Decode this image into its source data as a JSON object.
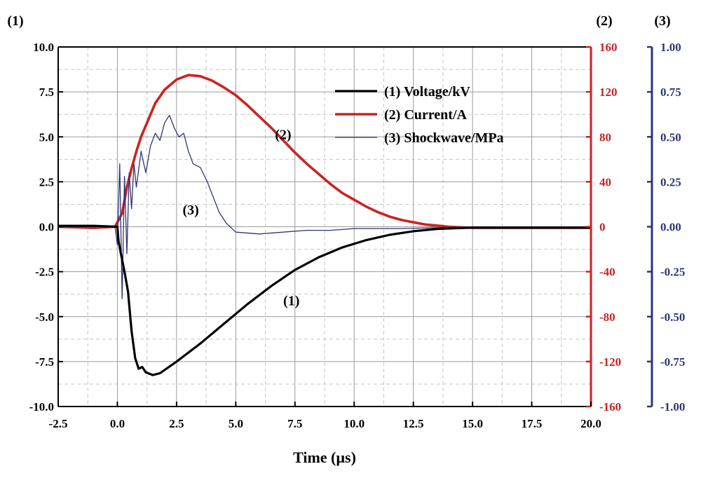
{
  "chart_data": {
    "type": "line",
    "xlabel": "Time (µs)",
    "xlim": [
      -2.5,
      20.0
    ],
    "x_ticks": [
      "-2.5",
      "0.0",
      "2.5",
      "5.0",
      "7.5",
      "10.0",
      "12.5",
      "15.0",
      "17.5",
      "20.0"
    ],
    "axes": [
      {
        "id": "y1",
        "label": "(1)",
        "lim": [
          -10.0,
          10.0
        ],
        "ticks": [
          "10.0",
          "7.5",
          "5.0",
          "2.5",
          "0.0",
          "-2.5",
          "-5.0",
          "-7.5",
          "-10.0"
        ],
        "color": "#000000"
      },
      {
        "id": "y2",
        "label": "(2)",
        "lim": [
          -160,
          160
        ],
        "ticks": [
          "160",
          "120",
          "80",
          "40",
          "0",
          "-40",
          "-80",
          "-120",
          "-160"
        ],
        "color": "#cc2222"
      },
      {
        "id": "y3",
        "label": "(3)",
        "lim": [
          -1.0,
          1.0
        ],
        "ticks": [
          "1.00",
          "0.75",
          "0.50",
          "0.25",
          "0.00",
          "-0.25",
          "-0.50",
          "-0.75",
          "-1.00"
        ],
        "color": "#2e3575"
      }
    ],
    "grid": true,
    "legend_position": "top-right",
    "series": [
      {
        "name": "(1) Voltage/kV",
        "axis": "y1",
        "color": "#000000",
        "annotation": "(1)",
        "points": [
          [
            -2.5,
            0.05
          ],
          [
            -1.0,
            0.05
          ],
          [
            0.0,
            0.0
          ],
          [
            0.05,
            -0.8
          ],
          [
            0.15,
            -1.5
          ],
          [
            0.3,
            -2.5
          ],
          [
            0.45,
            -3.6
          ],
          [
            0.6,
            -5.8
          ],
          [
            0.75,
            -7.3
          ],
          [
            0.9,
            -7.9
          ],
          [
            1.05,
            -7.8
          ],
          [
            1.2,
            -8.1
          ],
          [
            1.5,
            -8.25
          ],
          [
            1.8,
            -8.15
          ],
          [
            2.5,
            -7.5
          ],
          [
            3.5,
            -6.5
          ],
          [
            4.5,
            -5.4
          ],
          [
            5.5,
            -4.3
          ],
          [
            6.5,
            -3.3
          ],
          [
            7.5,
            -2.4
          ],
          [
            8.5,
            -1.7
          ],
          [
            9.5,
            -1.15
          ],
          [
            10.5,
            -0.75
          ],
          [
            11.5,
            -0.45
          ],
          [
            12.5,
            -0.25
          ],
          [
            13.5,
            -0.12
          ],
          [
            15.0,
            -0.05
          ],
          [
            17.5,
            -0.05
          ],
          [
            20.0,
            -0.05
          ]
        ]
      },
      {
        "name": "(2) Current/A",
        "axis": "y2",
        "color": "#cc2222",
        "annotation": "(2)",
        "points": [
          [
            -2.5,
            0
          ],
          [
            -1.0,
            -1
          ],
          [
            -0.1,
            0
          ],
          [
            0.2,
            12
          ],
          [
            0.4,
            35
          ],
          [
            0.6,
            52
          ],
          [
            0.8,
            67
          ],
          [
            1.0,
            80
          ],
          [
            1.3,
            95
          ],
          [
            1.6,
            110
          ],
          [
            2.0,
            122
          ],
          [
            2.5,
            131
          ],
          [
            3.0,
            135
          ],
          [
            3.5,
            134
          ],
          [
            4.0,
            130
          ],
          [
            4.5,
            124
          ],
          [
            5.0,
            117
          ],
          [
            5.5,
            108
          ],
          [
            6.0,
            98
          ],
          [
            6.5,
            88
          ],
          [
            7.0,
            77
          ],
          [
            7.5,
            66
          ],
          [
            8.0,
            56
          ],
          [
            8.5,
            47
          ],
          [
            9.0,
            38
          ],
          [
            9.5,
            30
          ],
          [
            10.0,
            24
          ],
          [
            10.5,
            18
          ],
          [
            11.0,
            13
          ],
          [
            11.5,
            9
          ],
          [
            12.0,
            6
          ],
          [
            12.5,
            4
          ],
          [
            13.0,
            2
          ],
          [
            14.0,
            0
          ],
          [
            15.0,
            -1
          ],
          [
            17.5,
            -1
          ],
          [
            20.0,
            -1
          ]
        ]
      },
      {
        "name": "(3) Shockwave/MPa",
        "axis": "y3",
        "color": "#2e3575",
        "annotation": "(3)",
        "points": [
          [
            -2.5,
            0.0
          ],
          [
            -0.1,
            0.0
          ],
          [
            0.0,
            -0.1
          ],
          [
            0.1,
            0.35
          ],
          [
            0.2,
            -0.4
          ],
          [
            0.3,
            0.28
          ],
          [
            0.4,
            -0.15
          ],
          [
            0.5,
            0.3
          ],
          [
            0.6,
            0.1
          ],
          [
            0.7,
            0.35
          ],
          [
            0.8,
            0.22
          ],
          [
            1.0,
            0.42
          ],
          [
            1.2,
            0.3
          ],
          [
            1.4,
            0.45
          ],
          [
            1.6,
            0.52
          ],
          [
            1.8,
            0.48
          ],
          [
            2.0,
            0.58
          ],
          [
            2.2,
            0.62
          ],
          [
            2.4,
            0.55
          ],
          [
            2.6,
            0.5
          ],
          [
            2.8,
            0.52
          ],
          [
            3.0,
            0.42
          ],
          [
            3.2,
            0.35
          ],
          [
            3.5,
            0.33
          ],
          [
            3.8,
            0.25
          ],
          [
            4.0,
            0.18
          ],
          [
            4.3,
            0.08
          ],
          [
            4.6,
            0.02
          ],
          [
            5.0,
            -0.03
          ],
          [
            6.0,
            -0.04
          ],
          [
            7.0,
            -0.03
          ],
          [
            8.0,
            -0.02
          ],
          [
            9.0,
            -0.02
          ],
          [
            10.0,
            -0.01
          ],
          [
            12.0,
            -0.01
          ],
          [
            15.0,
            0.0
          ],
          [
            20.0,
            0.0
          ]
        ]
      }
    ]
  }
}
